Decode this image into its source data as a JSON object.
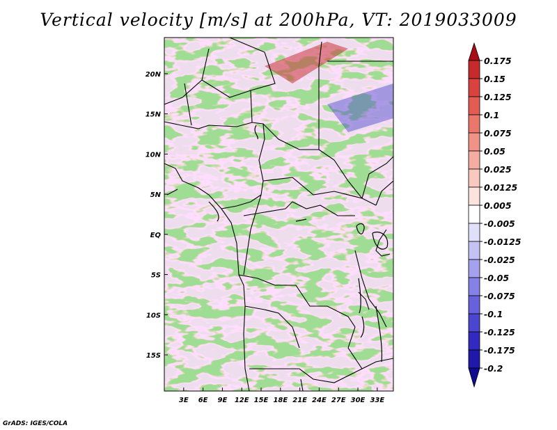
{
  "title": "Vertical velocity [m/s] at 200hPa, VT: 2019033009",
  "credit": "GrADS: IGES/COLA",
  "map": {
    "lon_range": [
      0,
      35.5
    ],
    "lat_range": [
      -19.5,
      24.5
    ],
    "lon_ticks": [
      {
        "value": 3,
        "label": "3E"
      },
      {
        "value": 6,
        "label": "6E"
      },
      {
        "value": 9,
        "label": "9E"
      },
      {
        "value": 12,
        "label": "12E"
      },
      {
        "value": 15,
        "label": "15E"
      },
      {
        "value": 18,
        "label": "18E"
      },
      {
        "value": 21,
        "label": "21E"
      },
      {
        "value": 24,
        "label": "24E"
      },
      {
        "value": 27,
        "label": "27E"
      },
      {
        "value": 30,
        "label": "30E"
      },
      {
        "value": 33,
        "label": "33E"
      }
    ],
    "lat_ticks": [
      {
        "value": 20,
        "label": "20N"
      },
      {
        "value": 15,
        "label": "15N"
      },
      {
        "value": 10,
        "label": "10N"
      },
      {
        "value": 5,
        "label": "5N"
      },
      {
        "value": 0,
        "label": "EQ"
      },
      {
        "value": -5,
        "label": "5S"
      },
      {
        "value": -10,
        "label": "10S"
      },
      {
        "value": -15,
        "label": "15S"
      }
    ]
  },
  "colorbar": {
    "levels": [
      "0.175",
      "0.15",
      "0.125",
      "0.1",
      "0.075",
      "0.05",
      "0.025",
      "0.0125",
      "0.005",
      "-0.005",
      "-0.0125",
      "-0.025",
      "-0.05",
      "-0.075",
      "-0.1",
      "-0.125",
      "-0.175",
      "-0.2"
    ],
    "colors": [
      "#a50f15",
      "#c62a2a",
      "#d9423f",
      "#e35c54",
      "#ea776c",
      "#f09285",
      "#f5ada2",
      "#f9c9c0",
      "#fde3de",
      "#ffffff",
      "#e0e0fb",
      "#c4c2f5",
      "#a5a1ee",
      "#8681e6",
      "#6761dc",
      "#4c45d0",
      "#3229c0",
      "#1f18a8",
      "#0e0a90"
    ]
  }
}
